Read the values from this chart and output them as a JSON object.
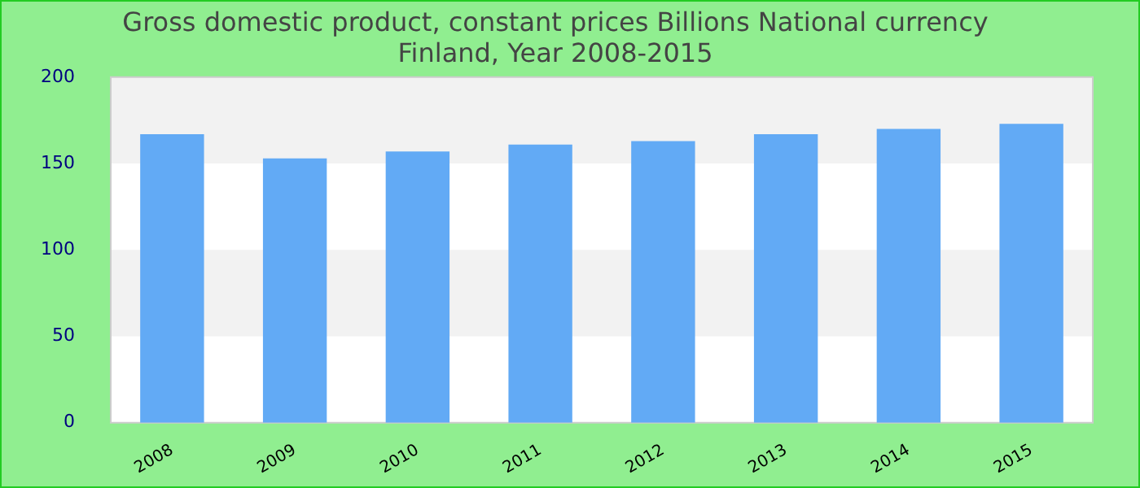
{
  "chart_data": {
    "type": "bar",
    "title": "Gross domestic product, constant prices Billions National currency\nFinland, Year 2008-2015",
    "categories": [
      "2008",
      "2009",
      "2010",
      "2011",
      "2012",
      "2013",
      "2014",
      "2015"
    ],
    "values": [
      167,
      153,
      157,
      161,
      163,
      167,
      170,
      173
    ],
    "color": "#62aaf5",
    "ylim": [
      0,
      200
    ],
    "yticks": [
      0,
      50,
      100,
      150,
      200
    ]
  }
}
